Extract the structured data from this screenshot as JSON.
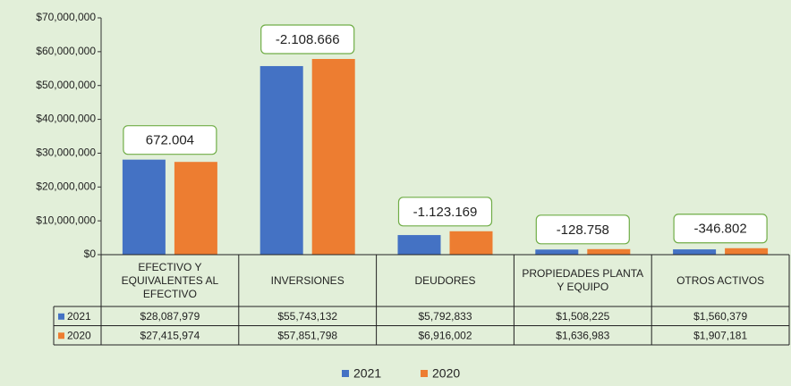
{
  "chart_data": {
    "type": "bar",
    "categories": [
      "EFECTIVO Y EQUIVALENTES AL EFECTIVO",
      "INVERSIONES",
      "DEUDORES",
      "PROPIEDADES PLANTA Y EQUIPO",
      "OTROS ACTIVOS"
    ],
    "series": [
      {
        "name": "2021",
        "color": "#4472c4",
        "values": [
          28087979,
          55743132,
          5792833,
          1508225,
          1560379
        ],
        "value_labels": [
          "$28,087,979",
          "$55,743,132",
          "$5,792,833",
          "$1,508,225",
          "$1,560,379"
        ]
      },
      {
        "name": "2020",
        "color": "#ed7d31",
        "values": [
          27415974,
          57851798,
          6916002,
          1636983,
          1907181
        ],
        "value_labels": [
          "$27,415,974",
          "$57,851,798",
          "$6,916,002",
          "$1,636,983",
          "$1,907,181"
        ]
      }
    ],
    "annotations": [
      "672.004",
      "-2.108.666",
      "-1.123.169",
      "-128.758",
      "-346.802"
    ],
    "ylim": [
      0,
      70000000
    ],
    "yticks": [
      {
        "value": 0,
        "label": "$0"
      },
      {
        "value": 10000000,
        "label": "$10,000,000"
      },
      {
        "value": 20000000,
        "label": "$20,000,000"
      },
      {
        "value": 30000000,
        "label": "$30,000,000"
      },
      {
        "value": 40000000,
        "label": "$40,000,000"
      },
      {
        "value": 50000000,
        "label": "$50,000,000"
      },
      {
        "value": 60000000,
        "label": "$60,000,000"
      },
      {
        "value": 70000000,
        "label": "$70,000,000"
      }
    ],
    "grid": false,
    "legend": "bottom"
  }
}
